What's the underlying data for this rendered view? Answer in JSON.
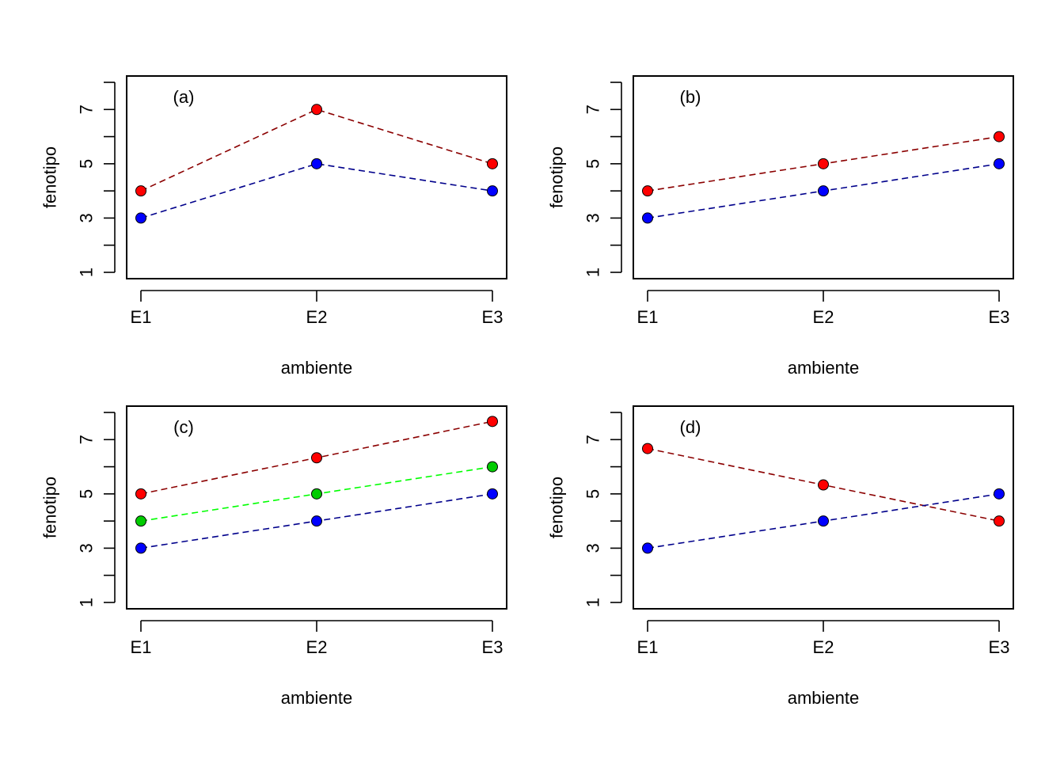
{
  "chart_data": [
    {
      "type": "line",
      "panel_label": "(a)",
      "categories": [
        "E1",
        "E2",
        "E3"
      ],
      "xlabel": "ambiente",
      "ylabel": "fenotipo",
      "ylim": [
        1,
        8
      ],
      "yticks": [
        "1",
        "3",
        "5",
        "7"
      ],
      "series": [
        {
          "values": [
            4,
            7,
            5
          ],
          "line_color": "#8B0000",
          "point_color": "#FF0000"
        },
        {
          "values": [
            3,
            5,
            4
          ],
          "line_color": "#00008B",
          "point_color": "#0000FF"
        }
      ]
    },
    {
      "type": "line",
      "panel_label": "(b)",
      "categories": [
        "E1",
        "E2",
        "E3"
      ],
      "xlabel": "ambiente",
      "ylabel": "fenotipo",
      "ylim": [
        1,
        8
      ],
      "yticks": [
        "1",
        "3",
        "5",
        "7"
      ],
      "series": [
        {
          "values": [
            4,
            5,
            6
          ],
          "line_color": "#8B0000",
          "point_color": "#FF0000"
        },
        {
          "values": [
            3,
            4,
            5
          ],
          "line_color": "#00008B",
          "point_color": "#0000FF"
        }
      ]
    },
    {
      "type": "line",
      "panel_label": "(c)",
      "categories": [
        "E1",
        "E2",
        "E3"
      ],
      "xlabel": "ambiente",
      "ylabel": "fenotipo",
      "ylim": [
        1,
        8
      ],
      "yticks": [
        "1",
        "3",
        "5",
        "7"
      ],
      "series": [
        {
          "values": [
            5,
            6.33,
            7.67
          ],
          "line_color": "#8B0000",
          "point_color": "#FF0000"
        },
        {
          "values": [
            4,
            5,
            6
          ],
          "line_color": "#00FF00",
          "point_color": "#00CC00"
        },
        {
          "values": [
            3,
            4,
            5
          ],
          "line_color": "#00008B",
          "point_color": "#0000FF"
        }
      ]
    },
    {
      "type": "line",
      "panel_label": "(d)",
      "categories": [
        "E1",
        "E2",
        "E3"
      ],
      "xlabel": "ambiente",
      "ylabel": "fenotipo",
      "ylim": [
        1,
        8
      ],
      "yticks": [
        "1",
        "3",
        "5",
        "7"
      ],
      "series": [
        {
          "values": [
            6.67,
            5.33,
            4
          ],
          "line_color": "#8B0000",
          "point_color": "#FF0000"
        },
        {
          "values": [
            3,
            4,
            5
          ],
          "line_color": "#00008B",
          "point_color": "#0000FF"
        }
      ]
    }
  ]
}
